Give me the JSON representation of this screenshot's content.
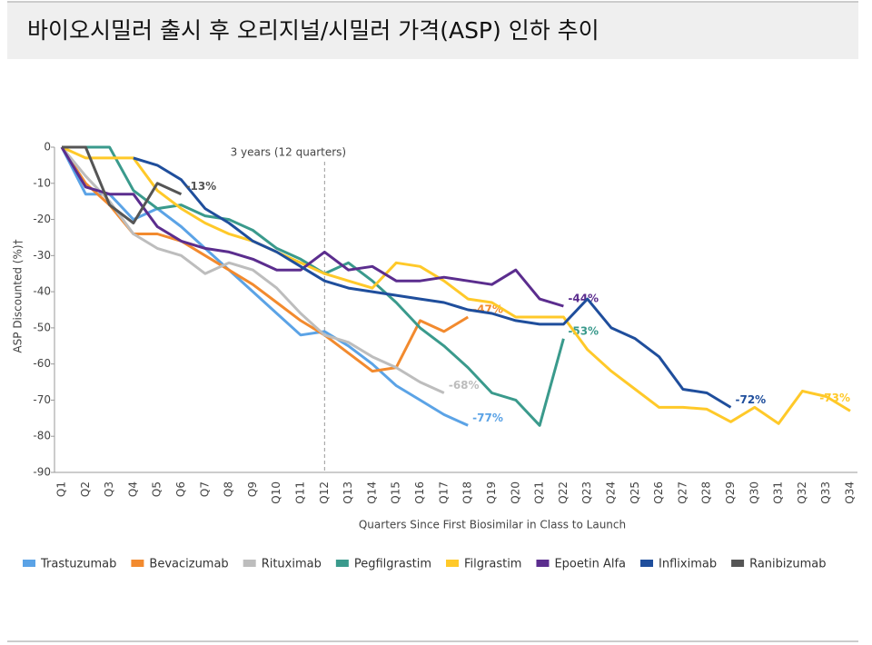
{
  "chart_data": {
    "type": "line",
    "title": "바이오시밀러 출시 후 오리지널/시밀러 가격(ASP) 인하 추이",
    "x_label": "Quarters Since First Biosimilar in Class to Launch",
    "y_label": "ASP Discounted (%)†",
    "annotation": {
      "text": "3 years (12 quarters)",
      "at": "Q12"
    },
    "categories": [
      "Q1",
      "Q2",
      "Q3",
      "Q4",
      "Q5",
      "Q6",
      "Q7",
      "Q8",
      "Q9",
      "Q10",
      "Q11",
      "Q12",
      "Q13",
      "Q14",
      "Q15",
      "Q16",
      "Q17",
      "Q18",
      "Q19",
      "Q20",
      "Q21",
      "Q22",
      "Q23",
      "Q24",
      "Q25",
      "Q26",
      "Q27",
      "Q28",
      "Q29",
      "Q30",
      "Q31",
      "Q32",
      "Q33",
      "Q34"
    ],
    "ylim": [
      -90,
      0
    ],
    "yticks": [
      0,
      -10,
      -20,
      -30,
      -40,
      -50,
      -60,
      -70,
      -80,
      -90
    ],
    "series": [
      {
        "name": "Trastuzumab",
        "color": "#5ba3e6",
        "values": [
          0,
          -13,
          -13,
          -20,
          -17,
          -22,
          -28,
          -34,
          -40,
          -46,
          -52,
          -51,
          -55,
          -60,
          -66,
          -70,
          -74,
          -77,
          null,
          null,
          null,
          null,
          null,
          null,
          null,
          null,
          null,
          null,
          null,
          null,
          null,
          null,
          null,
          null
        ],
        "value_labels": [
          null,
          null,
          null,
          null,
          null,
          null,
          null,
          null,
          null,
          null,
          null,
          null,
          null,
          null,
          null,
          null,
          null,
          "-77%",
          null,
          null,
          null,
          null,
          null,
          null,
          null,
          null,
          null,
          null,
          null,
          null,
          null,
          null,
          null,
          null
        ]
      },
      {
        "name": "Bevacizumab",
        "color": "#f28a2e",
        "values": [
          0,
          -10,
          -16,
          -24,
          -24,
          -26,
          -30,
          -34,
          -38,
          -43,
          -48,
          -52,
          -57,
          -62,
          -61,
          -48,
          -51,
          -47,
          null,
          null,
          null,
          null,
          null,
          null,
          null,
          null,
          null,
          null,
          null,
          null,
          null,
          null,
          null,
          null
        ],
        "value_labels": [
          null,
          null,
          null,
          null,
          null,
          null,
          null,
          null,
          null,
          null,
          null,
          null,
          null,
          null,
          null,
          null,
          null,
          "-47%",
          null,
          null,
          null,
          null,
          null,
          null,
          null,
          null,
          null,
          null,
          null,
          null,
          null,
          null,
          null,
          null
        ]
      },
      {
        "name": "Rituximab",
        "color": "#bdbdbd",
        "values": [
          0,
          -8,
          -15,
          -24,
          -28,
          -30,
          -35,
          -32,
          -34,
          -39,
          -46,
          -52,
          -54,
          -58,
          -61,
          -65,
          -68,
          null,
          null,
          null,
          null,
          null,
          null,
          null,
          null,
          null,
          null,
          null,
          null,
          null,
          null,
          null,
          null,
          null
        ],
        "value_labels": [
          null,
          null,
          null,
          null,
          null,
          null,
          null,
          null,
          null,
          null,
          null,
          null,
          null,
          null,
          null,
          null,
          "-68%",
          null,
          null,
          null,
          null,
          null,
          null,
          null,
          null,
          null,
          null,
          null,
          null,
          null,
          null,
          null,
          null,
          null
        ]
      },
      {
        "name": "Pegfilgrastim",
        "color": "#3a9a8c",
        "values": [
          0,
          0,
          0,
          -12,
          -17,
          -16,
          -19,
          -20,
          -23,
          -28,
          -31,
          -35,
          -32,
          -37,
          -43,
          -50,
          -55,
          -61,
          -68,
          -70,
          -77,
          -53,
          null,
          null,
          null,
          null,
          null,
          null,
          null,
          null,
          null,
          null,
          null,
          null
        ],
        "value_labels": [
          null,
          null,
          null,
          null,
          null,
          null,
          null,
          null,
          null,
          null,
          null,
          null,
          null,
          null,
          null,
          null,
          null,
          null,
          null,
          null,
          null,
          "-53%",
          null,
          null,
          null,
          null,
          null,
          null,
          null,
          null,
          null,
          null,
          null,
          null
        ]
      },
      {
        "name": "Filgrastim",
        "color": "#ffc929",
        "values": [
          0,
          -3,
          -3,
          -3,
          -12,
          -17,
          -21,
          -24,
          -26,
          -29,
          -32,
          -35,
          -37,
          -39,
          -32,
          -33,
          -37,
          -42,
          -43,
          -47,
          -47,
          -47,
          -56,
          -62,
          -67,
          -72,
          -72,
          -72.5,
          -76,
          -72,
          -76.5,
          -67.5,
          -69,
          -73
        ],
        "value_labels": [
          null,
          null,
          null,
          null,
          null,
          null,
          null,
          null,
          null,
          null,
          null,
          null,
          null,
          null,
          null,
          null,
          null,
          null,
          null,
          null,
          null,
          null,
          null,
          null,
          null,
          null,
          null,
          null,
          null,
          null,
          null,
          null,
          null,
          "-73%"
        ]
      },
      {
        "name": "Epoetin Alfa",
        "color": "#5b2d8e",
        "values": [
          0,
          -11,
          -13,
          -13,
          -22,
          -26,
          -28,
          -29,
          -31,
          -34,
          -34,
          -29,
          -34,
          -33,
          -37,
          -37,
          -36,
          -37,
          -38,
          -34,
          -42,
          -44,
          null,
          null,
          null,
          null,
          null,
          null,
          null,
          null,
          null,
          null,
          null,
          null
        ],
        "value_labels": [
          null,
          null,
          null,
          null,
          null,
          null,
          null,
          null,
          null,
          null,
          null,
          null,
          null,
          null,
          null,
          null,
          null,
          null,
          null,
          null,
          null,
          "-44%",
          null,
          null,
          null,
          null,
          null,
          null,
          null,
          null,
          null,
          null,
          null,
          null
        ]
      },
      {
        "name": "Infliximab",
        "color": "#1f4e9c",
        "values": [
          null,
          null,
          null,
          -3,
          -5,
          -9,
          -17,
          -21,
          -26,
          -29,
          -33,
          -37,
          -39,
          -40,
          -41,
          -42,
          -43,
          -45,
          -46,
          -48,
          -49,
          -49,
          -42,
          -50,
          -53,
          -58,
          -67,
          -68,
          -72,
          null,
          null,
          null,
          null,
          null
        ],
        "value_labels": [
          null,
          null,
          null,
          null,
          null,
          null,
          null,
          null,
          null,
          null,
          null,
          null,
          null,
          null,
          null,
          null,
          null,
          null,
          null,
          null,
          null,
          null,
          null,
          null,
          null,
          null,
          null,
          null,
          "-72%",
          null,
          null,
          null,
          null,
          null
        ]
      },
      {
        "name": "Ranibizumab",
        "color": "#555555",
        "values": [
          0,
          0,
          -16,
          -21,
          -10,
          -13,
          null,
          null,
          null,
          null,
          null,
          null,
          null,
          null,
          null,
          null,
          null,
          null,
          null,
          null,
          null,
          null,
          null,
          null,
          null,
          null,
          null,
          null,
          null,
          null,
          null,
          null,
          null,
          null
        ],
        "value_labels": [
          null,
          null,
          null,
          null,
          null,
          "-13%",
          null,
          null,
          null,
          null,
          null,
          null,
          null,
          null,
          null,
          null,
          null,
          null,
          null,
          null,
          null,
          null,
          null,
          null,
          null,
          null,
          null,
          null,
          null,
          null,
          null,
          null,
          null,
          null
        ]
      }
    ]
  }
}
